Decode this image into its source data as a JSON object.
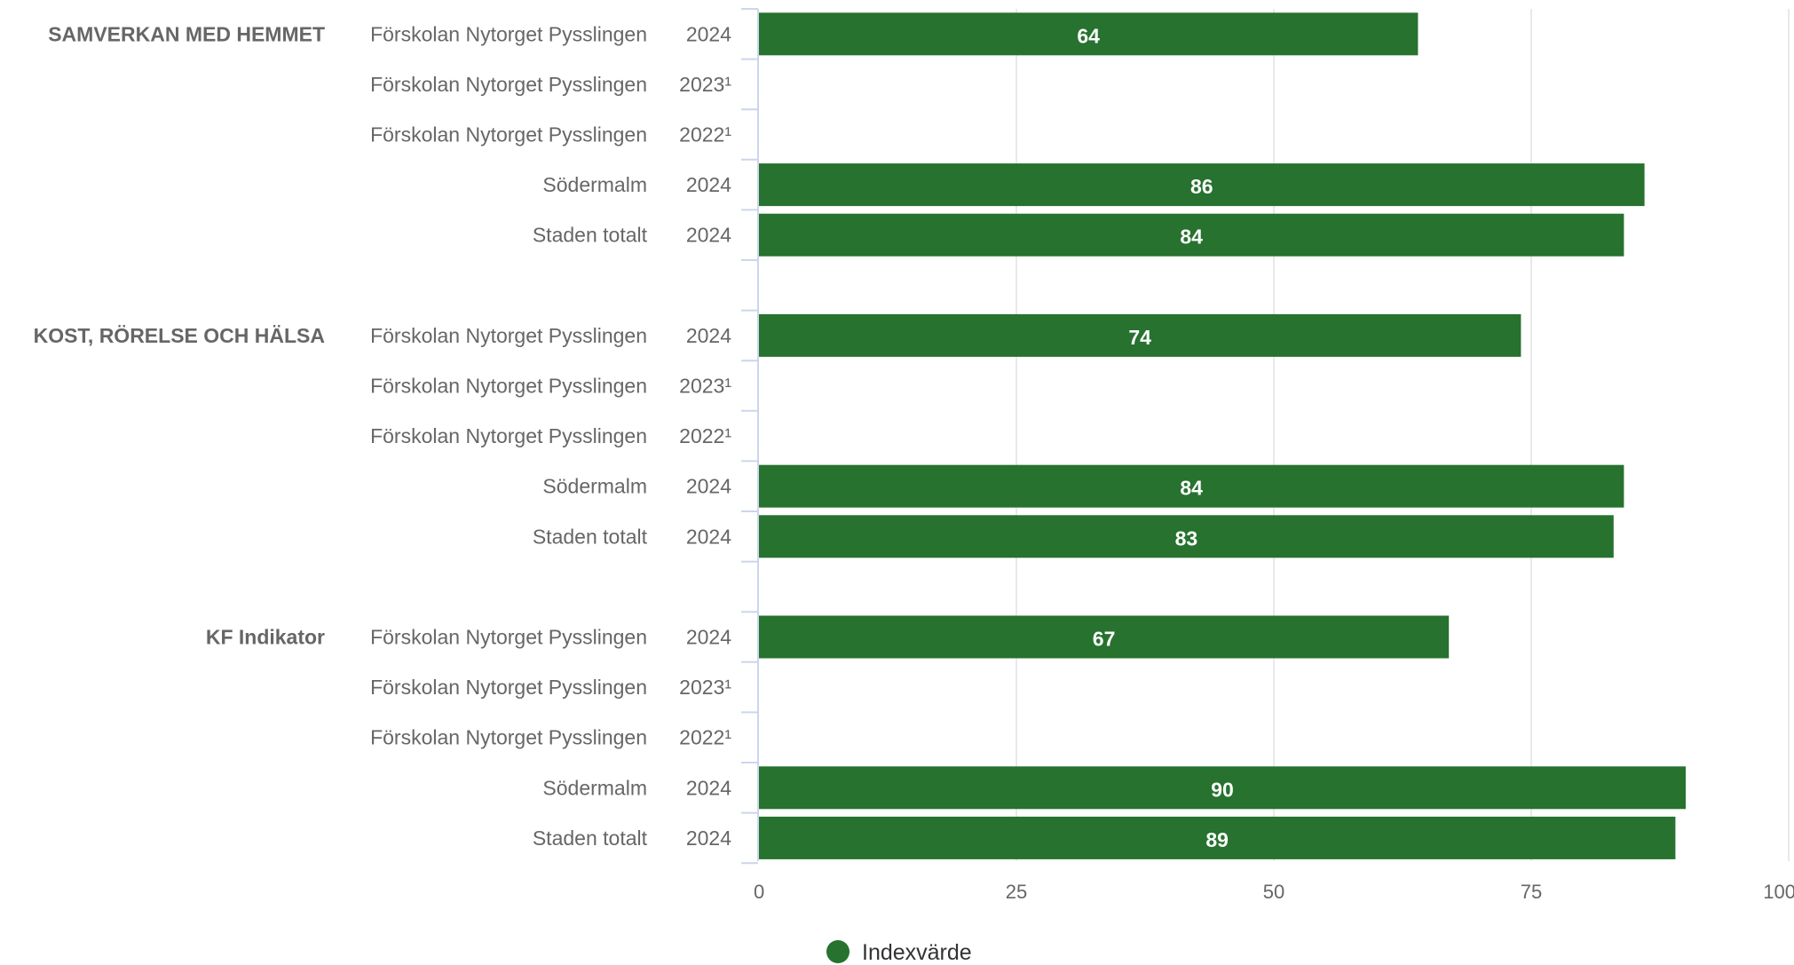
{
  "chart_data": {
    "type": "bar",
    "orientation": "horizontal",
    "xlim": [
      0,
      100
    ],
    "x_ticks": [
      "0",
      "25",
      "50",
      "75",
      "100"
    ],
    "grid": true,
    "legend": {
      "position": "bottom",
      "entries": [
        {
          "label": "Indexvärde",
          "color": "#26722e"
        }
      ]
    },
    "colors": {
      "bar": "#26722e",
      "bar_label": "#ffffff",
      "group_label": "#666666",
      "row_label": "#666666",
      "grid": "#e2e2e2",
      "axis": "#ccd6eb"
    },
    "groups": [
      {
        "name": "SAMVERKAN MED HEMMET",
        "rows": [
          {
            "unit": "Förskolan Nytorget Pysslingen",
            "year": "2024",
            "value": 64
          },
          {
            "unit": "Förskolan Nytorget Pysslingen",
            "year": "2023¹",
            "value": null
          },
          {
            "unit": "Förskolan Nytorget Pysslingen",
            "year": "2022¹",
            "value": null
          },
          {
            "unit": "Södermalm",
            "year": "2024",
            "value": 86
          },
          {
            "unit": "Staden totalt",
            "year": "2024",
            "value": 84
          }
        ]
      },
      {
        "name": "KOST, RÖRELSE OCH HÄLSA",
        "rows": [
          {
            "unit": "Förskolan Nytorget Pysslingen",
            "year": "2024",
            "value": 74
          },
          {
            "unit": "Förskolan Nytorget Pysslingen",
            "year": "2023¹",
            "value": null
          },
          {
            "unit": "Förskolan Nytorget Pysslingen",
            "year": "2022¹",
            "value": null
          },
          {
            "unit": "Södermalm",
            "year": "2024",
            "value": 84
          },
          {
            "unit": "Staden totalt",
            "year": "2024",
            "value": 83
          }
        ]
      },
      {
        "name": "KF Indikator",
        "rows": [
          {
            "unit": "Förskolan Nytorget Pysslingen",
            "year": "2024",
            "value": 67
          },
          {
            "unit": "Förskolan Nytorget Pysslingen",
            "year": "2023¹",
            "value": null
          },
          {
            "unit": "Förskolan Nytorget Pysslingen",
            "year": "2022¹",
            "value": null
          },
          {
            "unit": "Södermalm",
            "year": "2024",
            "value": 90
          },
          {
            "unit": "Staden totalt",
            "year": "2024",
            "value": 89
          }
        ]
      }
    ]
  }
}
